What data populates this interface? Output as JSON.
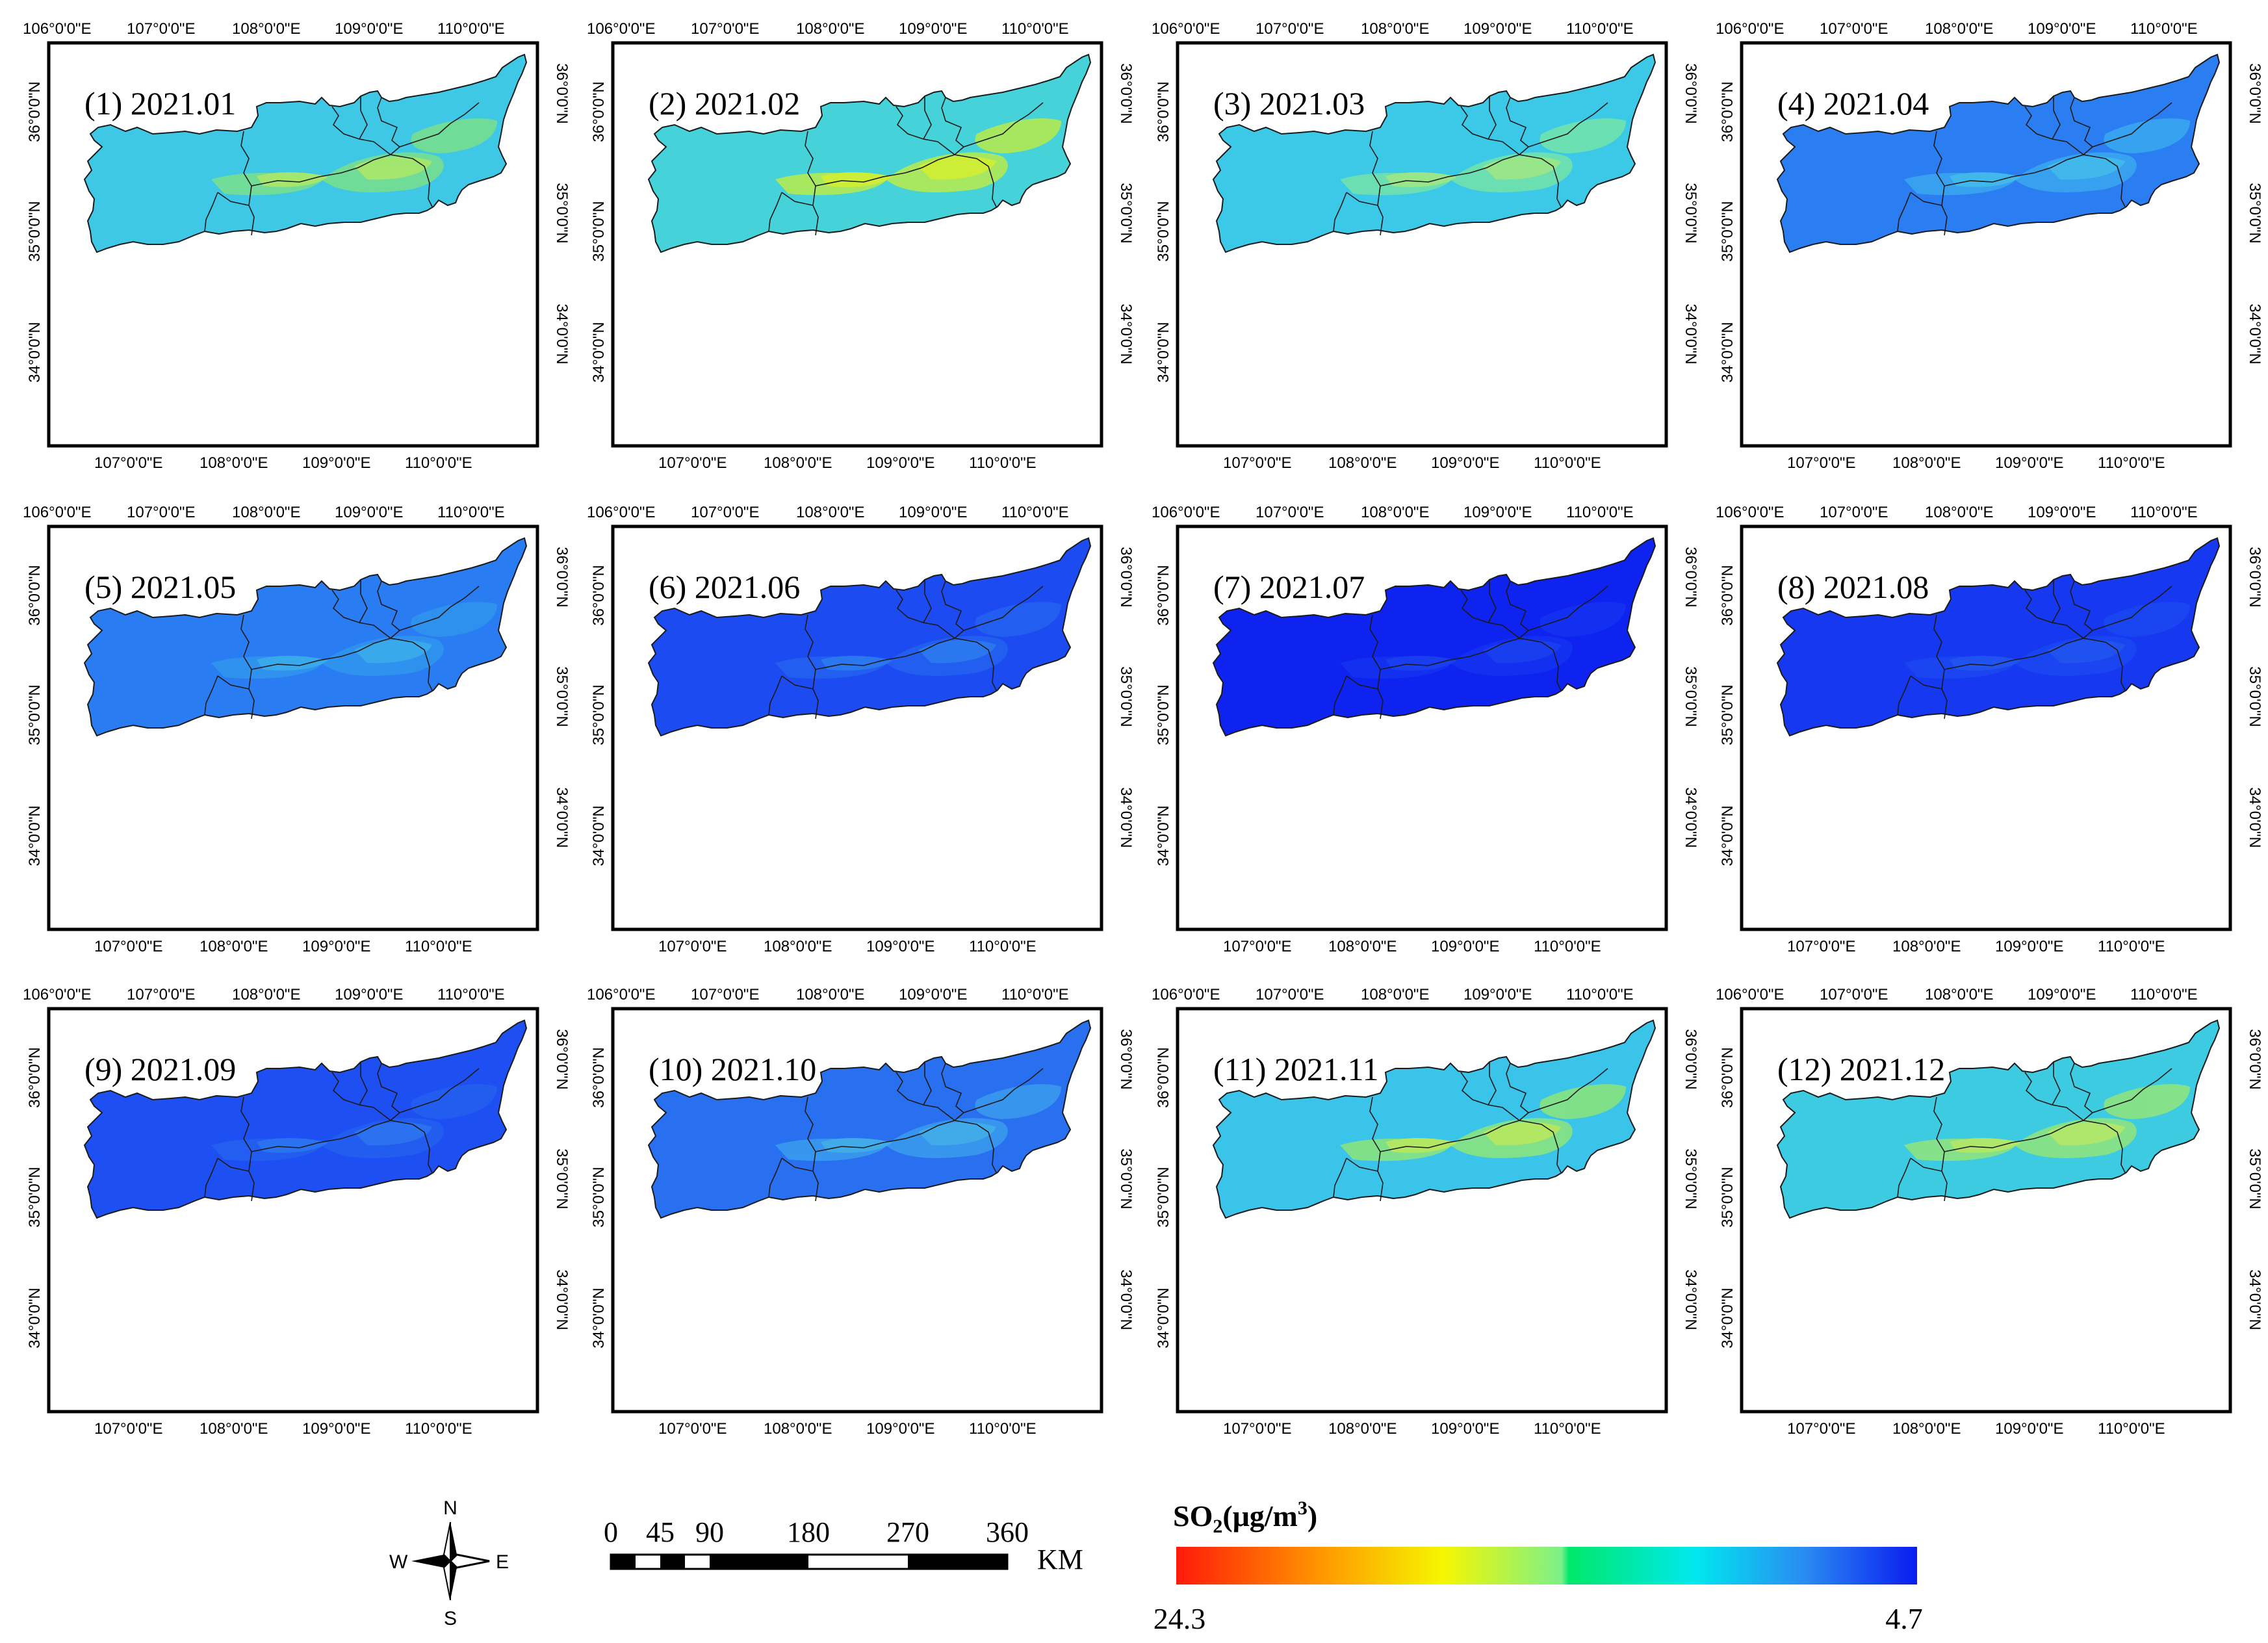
{
  "panels": [
    {
      "label": "(1) 2021.01",
      "fill": "#3fc8e6",
      "hot": "#7ae08a",
      "hot2": "#b6ec5a"
    },
    {
      "label": "(2) 2021.02",
      "fill": "#45d2d8",
      "hot": "#b9ec4c",
      "hot2": "#e6f21c"
    },
    {
      "label": "(3) 2021.03",
      "fill": "#3cc9e8",
      "hot": "#74e4a8",
      "hot2": "#a9eb7a"
    },
    {
      "label": "(4) 2021.04",
      "fill": "#2b7ef2",
      "hot": "#3aa8f0",
      "hot2": "#46c2ea"
    },
    {
      "label": "(5) 2021.05",
      "fill": "#2a7cf2",
      "hot": "#3196ee",
      "hot2": "#3cb2ea"
    },
    {
      "label": "(6) 2021.06",
      "fill": "#1c4bf2",
      "hot": "#2463f0",
      "hot2": "#2e7ff0"
    },
    {
      "label": "(7) 2021.07",
      "fill": "#0e22f0",
      "hot": "#1432f0",
      "hot2": "#1c44f0"
    },
    {
      "label": "(8) 2021.08",
      "fill": "#1538f0",
      "hot": "#1b48f0",
      "hot2": "#2358f0"
    },
    {
      "label": "(9) 2021.09",
      "fill": "#1d4ff2",
      "hot": "#2460f0",
      "hot2": "#2e78f0"
    },
    {
      "label": "(10) 2021.10",
      "fill": "#2870f0",
      "hot": "#3a9cee",
      "hot2": "#46b6ea"
    },
    {
      "label": "(11) 2021.11",
      "fill": "#3ac4ea",
      "hot": "#8ee57a",
      "hot2": "#c8ee4c"
    },
    {
      "label": "(12) 2021.12",
      "fill": "#3dcbe2",
      "hot": "#92e67a",
      "hot2": "#c2ec58"
    }
  ],
  "axes": {
    "lon_top": [
      "106°0'0\"E",
      "107°0'0\"E",
      "108°0'0\"E",
      "109°0'0\"E",
      "110°0'0\"E"
    ],
    "lon_bottom": [
      "107°0'0\"E",
      "108°0'0\"E",
      "109°0'0\"E",
      "110°0'0\"E"
    ],
    "lat_left": [
      "36°0'0\"N",
      "35°0'0\"N",
      "34°0'0\"N"
    ],
    "lat_right": [
      "36°0'0\"N",
      "35°0'0\"N",
      "34°0'0\"N"
    ]
  },
  "north_arrow": {
    "n": "N",
    "s": "S",
    "e": "E",
    "w": "W"
  },
  "scale_bar": {
    "ticks": [
      "0",
      "45",
      "90",
      "180",
      "270",
      "360"
    ],
    "unit": "KM"
  },
  "legend": {
    "title_main": "SO",
    "title_sub": "2",
    "title_tail": "(μg/m",
    "title_sup": "3",
    "title_end": ")",
    "max": "24.3",
    "min": "4.7"
  },
  "colors": {
    "outline": "#1a1a1a",
    "frame": "#000000"
  }
}
